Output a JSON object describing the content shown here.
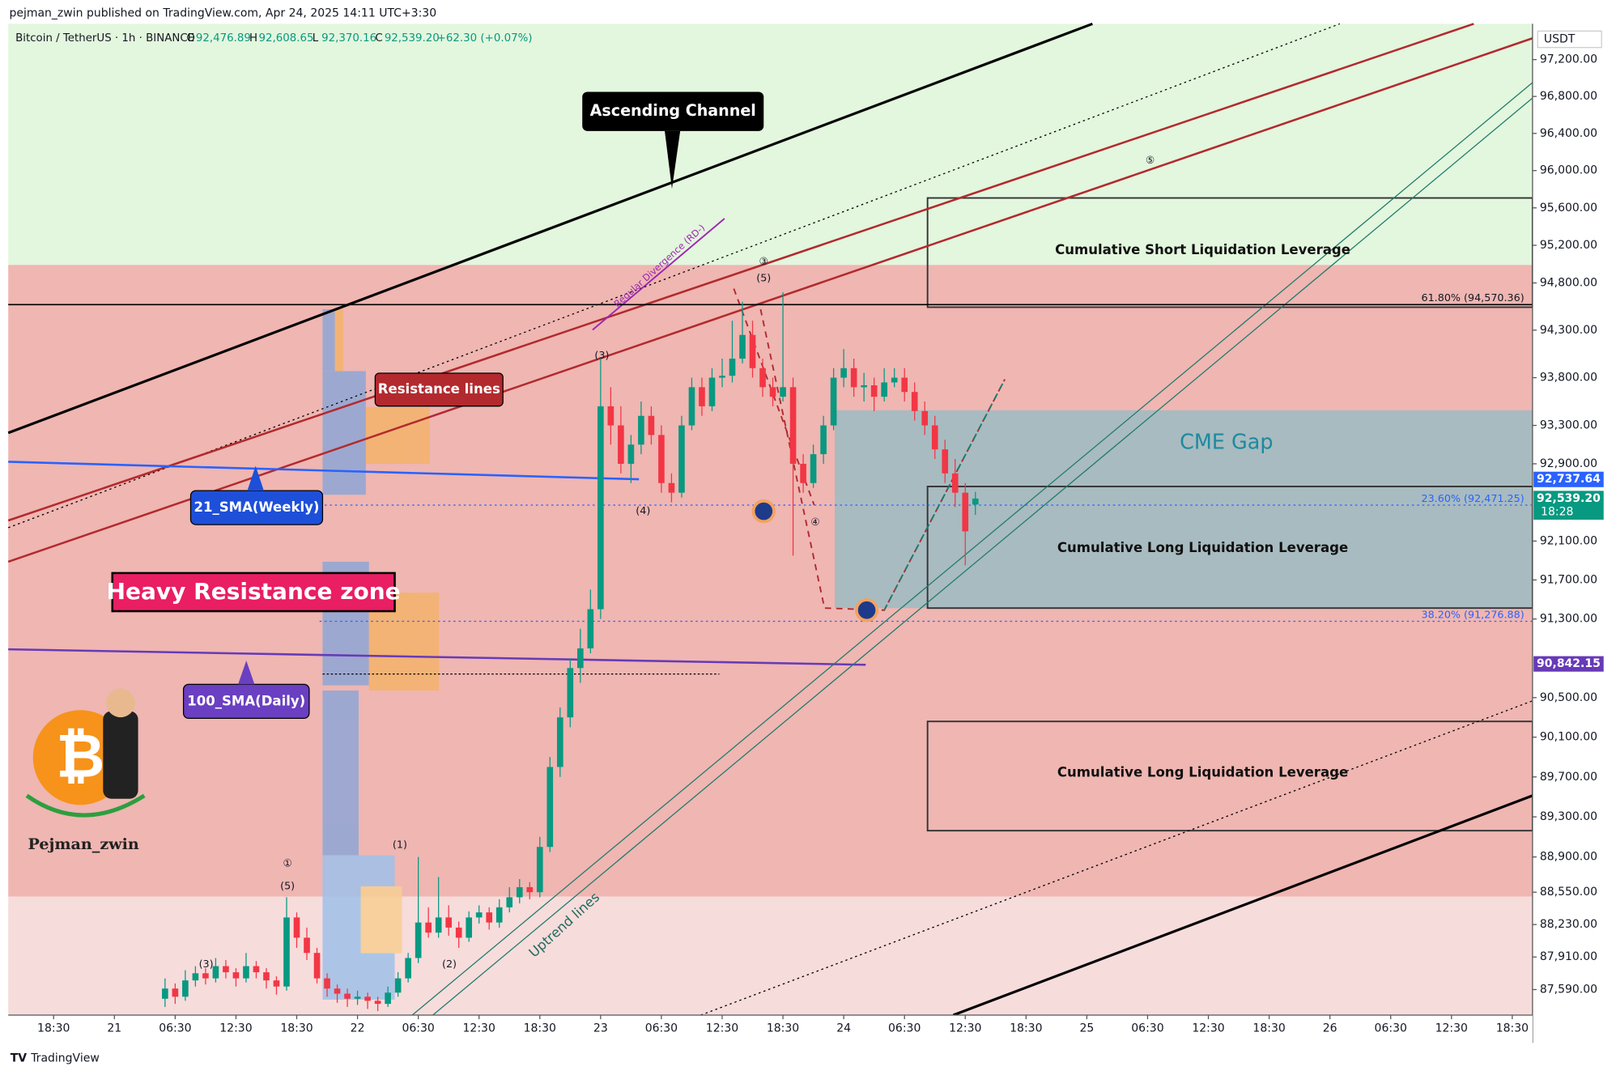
{
  "header": {
    "published": "pejman_zwin published on TradingView.com, Apr 24, 2025 14:11 UTC+3:30",
    "symbol": "Bitcoin / TetherUS · 1h · BINANCE",
    "ohlc": [
      {
        "key": "O",
        "value": "92,476.89"
      },
      {
        "key": "H",
        "value": "92,608.65"
      },
      {
        "key": "L",
        "value": "92,370.16"
      },
      {
        "key": "C",
        "value": "92,539.20"
      }
    ],
    "change": "+62.30 (+0.07%)"
  },
  "chart_data": {
    "type": "candlestick",
    "currency": "USDT",
    "log_scale": true,
    "up_color": "#089981",
    "down_color": "#f23645",
    "ylim": [
      87340,
      97590
    ],
    "yticks": [
      {
        "value": 97200,
        "label": "97,200.00"
      },
      {
        "value": 96800,
        "label": "96,800.00"
      },
      {
        "value": 96400,
        "label": "96,400.00"
      },
      {
        "value": 96000,
        "label": "96,000.00"
      },
      {
        "value": 95600,
        "label": "95,600.00"
      },
      {
        "value": 95200,
        "label": "95,200.00"
      },
      {
        "value": 94800,
        "label": "94,800.00"
      },
      {
        "value": 94300,
        "label": "94,300.00"
      },
      {
        "value": 93800,
        "label": "93,800.00"
      },
      {
        "value": 93300,
        "label": "93,300.00"
      },
      {
        "value": 92900,
        "label": "92,900.00"
      },
      {
        "value": 92100,
        "label": "92,100.00"
      },
      {
        "value": 91700,
        "label": "91,700.00"
      },
      {
        "value": 91300,
        "label": "91,300.00"
      },
      {
        "value": 90500,
        "label": "90,500.00"
      },
      {
        "value": 90100,
        "label": "90,100.00"
      },
      {
        "value": 89700,
        "label": "89,700.00"
      },
      {
        "value": 89300,
        "label": "89,300.00"
      },
      {
        "value": 88900,
        "label": "88,900.00"
      },
      {
        "value": 88550,
        "label": "88,550.00"
      },
      {
        "value": 88230,
        "label": "88,230.00"
      },
      {
        "value": 87910,
        "label": "87,910.00"
      },
      {
        "value": 87590,
        "label": "87,590.00"
      }
    ],
    "xlim": [
      -4.48,
      146
    ],
    "xticks": [
      {
        "value": 0,
        "label": "18:30"
      },
      {
        "value": 6,
        "label": "21"
      },
      {
        "value": 12,
        "label": "06:30"
      },
      {
        "value": 18,
        "label": "12:30"
      },
      {
        "value": 24,
        "label": "18:30"
      },
      {
        "value": 30,
        "label": "22"
      },
      {
        "value": 36,
        "label": "06:30"
      },
      {
        "value": 42,
        "label": "12:30"
      },
      {
        "value": 48,
        "label": "18:30"
      },
      {
        "value": 54,
        "label": "23"
      },
      {
        "value": 60,
        "label": "06:30"
      },
      {
        "value": 66,
        "label": "12:30"
      },
      {
        "value": 72,
        "label": "18:30"
      },
      {
        "value": 78,
        "label": "24"
      },
      {
        "value": 84,
        "label": "06:30"
      },
      {
        "value": 90,
        "label": "12:30"
      },
      {
        "value": 96,
        "label": "18:30"
      },
      {
        "value": 102,
        "label": "25"
      },
      {
        "value": 108,
        "label": "06:30"
      },
      {
        "value": 114,
        "label": "12:30"
      },
      {
        "value": 120,
        "label": "18:30"
      },
      {
        "value": 126,
        "label": "26"
      },
      {
        "value": 132,
        "label": "06:30"
      },
      {
        "value": 138,
        "label": "12:30"
      },
      {
        "value": 144,
        "label": "18:30"
      }
    ],
    "x": [
      11,
      12,
      13,
      14,
      15,
      16,
      17,
      18,
      19,
      20,
      21,
      22,
      23,
      24,
      25,
      26,
      27,
      28,
      29,
      30,
      31,
      32,
      33,
      34,
      35,
      36,
      37,
      38,
      39,
      40,
      41,
      42,
      43,
      44,
      45,
      46,
      47,
      48,
      49,
      50,
      51,
      52,
      53,
      54,
      55,
      56,
      57,
      58,
      59,
      60,
      61,
      62,
      63,
      64,
      65,
      66,
      67,
      68,
      69,
      70,
      71,
      72,
      73,
      74,
      75,
      76,
      77,
      78,
      79,
      80,
      81,
      82,
      83,
      84,
      85,
      86,
      87,
      88,
      89,
      90,
      91
    ],
    "candles": [
      [
        87500,
        87700,
        87420,
        87600
      ],
      [
        87600,
        87650,
        87450,
        87520
      ],
      [
        87520,
        87780,
        87480,
        87680
      ],
      [
        87680,
        87820,
        87620,
        87750
      ],
      [
        87750,
        87800,
        87640,
        87700
      ],
      [
        87700,
        87900,
        87660,
        87820
      ],
      [
        87820,
        87880,
        87700,
        87760
      ],
      [
        87760,
        87800,
        87620,
        87700
      ],
      [
        87700,
        87950,
        87660,
        87820
      ],
      [
        87820,
        87870,
        87700,
        87760
      ],
      [
        87760,
        87800,
        87600,
        87680
      ],
      [
        87680,
        87720,
        87540,
        87620
      ],
      [
        87620,
        88500,
        87580,
        88300
      ],
      [
        88300,
        88350,
        88000,
        88100
      ],
      [
        88100,
        88200,
        87880,
        87950
      ],
      [
        87950,
        88000,
        87650,
        87700
      ],
      [
        87700,
        87750,
        87520,
        87600
      ],
      [
        87600,
        87640,
        87460,
        87550
      ],
      [
        87550,
        87600,
        87420,
        87500
      ],
      [
        87500,
        87580,
        87440,
        87520
      ],
      [
        87520,
        87560,
        87400,
        87480
      ],
      [
        87480,
        87520,
        87380,
        87450
      ],
      [
        87450,
        87620,
        87420,
        87560
      ],
      [
        87560,
        87760,
        87520,
        87700
      ],
      [
        87700,
        87950,
        87660,
        87900
      ],
      [
        87900,
        88900,
        87850,
        88250
      ],
      [
        88250,
        88400,
        88100,
        88150
      ],
      [
        88150,
        88700,
        88100,
        88300
      ],
      [
        88300,
        88420,
        88120,
        88200
      ],
      [
        88200,
        88260,
        88000,
        88100
      ],
      [
        88100,
        88360,
        88060,
        88300
      ],
      [
        88300,
        88420,
        88240,
        88350
      ],
      [
        88350,
        88400,
        88180,
        88250
      ],
      [
        88250,
        88480,
        88200,
        88400
      ],
      [
        88400,
        88600,
        88350,
        88500
      ],
      [
        88500,
        88680,
        88440,
        88600
      ],
      [
        88600,
        88650,
        88480,
        88550
      ],
      [
        88550,
        89100,
        88500,
        89000
      ],
      [
        89000,
        89900,
        88950,
        89800
      ],
      [
        89800,
        90400,
        89700,
        90300
      ],
      [
        90300,
        90900,
        90200,
        90800
      ],
      [
        90800,
        91200,
        90650,
        91000
      ],
      [
        91000,
        91600,
        90950,
        91400
      ],
      [
        91400,
        94000,
        91300,
        93500
      ],
      [
        93500,
        93700,
        93100,
        93300
      ],
      [
        93300,
        93500,
        92800,
        92900
      ],
      [
        92900,
        93200,
        92700,
        93100
      ],
      [
        93100,
        93550,
        93000,
        93400
      ],
      [
        93400,
        93500,
        93100,
        93200
      ],
      [
        93200,
        93300,
        92600,
        92700
      ],
      [
        92700,
        92800,
        92500,
        92600
      ],
      [
        92600,
        93400,
        92550,
        93300
      ],
      [
        93300,
        93800,
        93250,
        93700
      ],
      [
        93700,
        93800,
        93400,
        93500
      ],
      [
        93500,
        93900,
        93450,
        93800
      ],
      [
        93800,
        94000,
        93700,
        93820
      ],
      [
        93820,
        94400,
        93750,
        94000
      ],
      [
        94000,
        94600,
        93950,
        94250
      ],
      [
        94250,
        94400,
        93800,
        93900
      ],
      [
        93900,
        94000,
        93600,
        93700
      ],
      [
        93700,
        93800,
        93500,
        93600
      ],
      [
        93600,
        94700,
        93550,
        93700
      ],
      [
        93700,
        93800,
        91950,
        92900
      ],
      [
        92900,
        93000,
        92600,
        92700
      ],
      [
        92700,
        93100,
        92650,
        93000
      ],
      [
        93000,
        93400,
        92900,
        93300
      ],
      [
        93300,
        93900,
        93250,
        93800
      ],
      [
        93800,
        94100,
        93700,
        93900
      ],
      [
        93900,
        94000,
        93600,
        93700
      ],
      [
        93700,
        93850,
        93550,
        93720
      ],
      [
        93720,
        93800,
        93450,
        93600
      ],
      [
        93600,
        93900,
        93550,
        93750
      ],
      [
        93750,
        93900,
        93700,
        93800
      ],
      [
        93800,
        93900,
        93550,
        93650
      ],
      [
        93650,
        93750,
        93350,
        93450
      ],
      [
        93450,
        93550,
        93200,
        93300
      ],
      [
        93300,
        93400,
        92950,
        93050
      ],
      [
        93050,
        93150,
        92700,
        92800
      ],
      [
        92800,
        92950,
        92450,
        92600
      ],
      [
        92600,
        92700,
        91850,
        92200
      ],
      [
        92476.89,
        92608.65,
        92370.16,
        92539.2
      ]
    ],
    "fib_levels": [
      {
        "value": 94570.36,
        "label": "61.80% (94,570.36)",
        "color": "#000000"
      },
      {
        "value": 92471.25,
        "label": "23.60% (92,471.25)",
        "color": "#2962ff"
      },
      {
        "value": 91276.88,
        "label": "38.20% (91,276.88)",
        "color": "#2962ff"
      }
    ],
    "price_tags": [
      {
        "value": 92737.64,
        "label": "92,737.64",
        "color": "#2962ff"
      },
      {
        "value": 92539.2,
        "label": "92,539.20",
        "color": "#089981",
        "countdown": "18:28"
      },
      {
        "value": 90842.15,
        "label": "90,842.15",
        "color": "#673ab7"
      }
    ],
    "annotations": {
      "channel": "Ascending Channel",
      "resistance": "Resistance lines",
      "sma21": "21_SMA(Weekly)",
      "zone": "Heavy Resistance zone",
      "sma100": "100_SMA(Daily)",
      "author": "Pejman_zwin",
      "divergence": "Regular Divergence (RD-)",
      "uptrend": "Uptrend lines",
      "cme": "CME Gap",
      "short_liq": "Cumulative Short Liquidation Leverage",
      "long_liq": "Cumulative Long Liquidation Leverage",
      "long_liq2": "Cumulative Long Liquidation Leverage"
    },
    "waves": [
      "①",
      "(5)",
      "(3)",
      "(1)",
      "(2)",
      "(3)",
      "(4)",
      "③",
      "(5)",
      "④",
      "⑤"
    ]
  },
  "footer": {
    "brand": "TradingView"
  }
}
